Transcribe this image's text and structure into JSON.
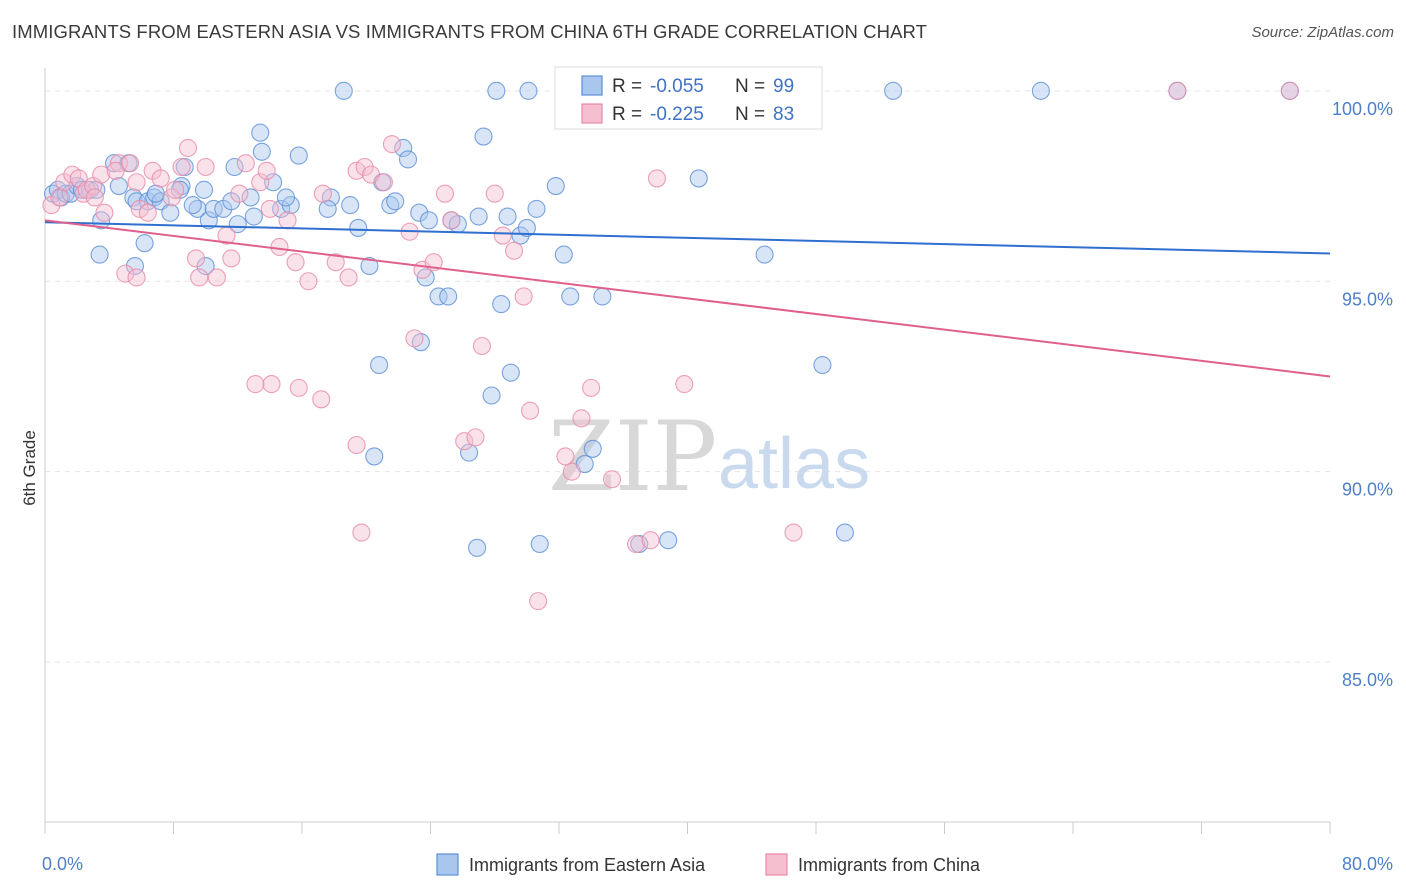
{
  "header": {
    "title": "IMMIGRANTS FROM EASTERN ASIA VS IMMIGRANTS FROM CHINA 6TH GRADE CORRELATION CHART",
    "source": "Source: ZipAtlas.com"
  },
  "watermark": {
    "zip": "ZIP",
    "atlas": "atlas"
  },
  "colors": {
    "blue": "#5b8fd6",
    "blue_fill": "#a9c6ee",
    "blue_line": "#2f6fcf",
    "pink": "#e88aa8",
    "pink_fill": "#f5bfd0",
    "pink_line": "#e0608c",
    "tick_text": "#4f7fc8",
    "grid": "#e4e4e4"
  },
  "chart_data": {
    "type": "scatter",
    "title": "IMMIGRANTS FROM EASTERN ASIA VS IMMIGRANTS FROM CHINA 6TH GRADE CORRELATION CHART",
    "ylabel": "6th Grade",
    "xlim": [
      0,
      80
    ],
    "ylim": [
      80.8,
      100.6
    ],
    "x_tick_labels": [
      {
        "value": 0,
        "label": "0.0%"
      },
      {
        "value": 80,
        "label": "80.0%"
      }
    ],
    "y_tick_labels": [
      {
        "value": 100,
        "label": "100.0%"
      },
      {
        "value": 95,
        "label": "95.0%"
      },
      {
        "value": 90,
        "label": "90.0%"
      },
      {
        "value": 85,
        "label": "85.0%"
      }
    ],
    "grid": true,
    "legend_position": "top-center",
    "legend": [
      {
        "r_label": "R =",
        "r_value": "-0.055",
        "n_label": "N =",
        "n_value": "99"
      },
      {
        "r_label": "R =",
        "r_value": "-0.225",
        "n_label": "N =",
        "n_value": "83"
      }
    ],
    "series": [
      {
        "name": "Immigrants from Eastern Asia",
        "color": "#5b8fd6",
        "trend": {
          "x": [
            0,
            80
          ],
          "y": [
            96.55,
            95.73
          ]
        },
        "points": [
          [
            0.5,
            97.3
          ],
          [
            0.8,
            97.4
          ],
          [
            1.0,
            97.2
          ],
          [
            1.3,
            97.3
          ],
          [
            1.6,
            97.3
          ],
          [
            2.0,
            97.5
          ],
          [
            2.3,
            97.4
          ],
          [
            2.8,
            97.4
          ],
          [
            3.2,
            97.4
          ],
          [
            3.5,
            96.6
          ],
          [
            3.4,
            95.7
          ],
          [
            4.3,
            98.1
          ],
          [
            4.6,
            97.5
          ],
          [
            5.2,
            98.1
          ],
          [
            5.5,
            97.2
          ],
          [
            5.7,
            97.1
          ],
          [
            5.6,
            95.4
          ],
          [
            6.2,
            96.0
          ],
          [
            6.4,
            97.1
          ],
          [
            6.8,
            97.2
          ],
          [
            7.2,
            97.1
          ],
          [
            7.8,
            96.8
          ],
          [
            8.5,
            97.5
          ],
          [
            8.7,
            98.0
          ],
          [
            8.4,
            97.4
          ],
          [
            9.9,
            97.4
          ],
          [
            9.5,
            96.9
          ],
          [
            10.2,
            96.6
          ],
          [
            10.5,
            96.9
          ],
          [
            10.0,
            95.4
          ],
          [
            11.1,
            96.9
          ],
          [
            11.8,
            98.0
          ],
          [
            11.6,
            97.1
          ],
          [
            12.8,
            97.2
          ],
          [
            13.4,
            98.9
          ],
          [
            13.0,
            96.7
          ],
          [
            13.5,
            98.4
          ],
          [
            14.2,
            97.6
          ],
          [
            14.7,
            96.9
          ],
          [
            15.3,
            97.0
          ],
          [
            15.8,
            98.3
          ],
          [
            17.8,
            97.2
          ],
          [
            18.6,
            100.0
          ],
          [
            19.0,
            97.0
          ],
          [
            19.5,
            96.4
          ],
          [
            20.2,
            95.4
          ],
          [
            20.8,
            92.8
          ],
          [
            20.5,
            90.4
          ],
          [
            21.5,
            97.0
          ],
          [
            21.8,
            97.1
          ],
          [
            22.3,
            98.5
          ],
          [
            22.6,
            98.2
          ],
          [
            23.3,
            96.8
          ],
          [
            23.7,
            95.1
          ],
          [
            23.9,
            96.6
          ],
          [
            23.4,
            93.4
          ],
          [
            24.5,
            94.6
          ],
          [
            25.1,
            94.6
          ],
          [
            25.3,
            96.6
          ],
          [
            26.4,
            90.5
          ],
          [
            26.9,
            88.0
          ],
          [
            27.3,
            98.8
          ],
          [
            27.8,
            92.0
          ],
          [
            28.1,
            100.0
          ],
          [
            28.4,
            94.4
          ],
          [
            28.8,
            96.7
          ],
          [
            29.0,
            92.6
          ],
          [
            29.6,
            96.2
          ],
          [
            30.0,
            96.4
          ],
          [
            30.6,
            96.9
          ],
          [
            30.8,
            88.1
          ],
          [
            31.8,
            97.5
          ],
          [
            32.3,
            95.7
          ],
          [
            32.7,
            94.6
          ],
          [
            33.6,
            90.2
          ],
          [
            34.1,
            90.6
          ],
          [
            34.7,
            94.6
          ],
          [
            37.0,
            88.1
          ],
          [
            38.8,
            88.2
          ],
          [
            40.7,
            97.7
          ],
          [
            42.0,
            100.0
          ],
          [
            42.4,
            100.0
          ],
          [
            44.0,
            100.0
          ],
          [
            44.8,
            95.7
          ],
          [
            48.4,
            92.8
          ],
          [
            49.8,
            88.4
          ],
          [
            52.8,
            100.0
          ],
          [
            62.0,
            100.0
          ],
          [
            70.5,
            100.0
          ],
          [
            77.5,
            100.0
          ],
          [
            30.1,
            100.0
          ],
          [
            27.0,
            96.7
          ],
          [
            25.7,
            96.5
          ],
          [
            21.0,
            97.6
          ],
          [
            17.6,
            96.9
          ],
          [
            15.0,
            97.2
          ],
          [
            12.0,
            96.5
          ],
          [
            9.2,
            97.0
          ],
          [
            6.9,
            97.3
          ]
        ]
      },
      {
        "name": "Immigrants from China",
        "color": "#e88aa8",
        "trend": {
          "x": [
            0,
            80
          ],
          "y": [
            96.6,
            92.5
          ]
        },
        "points": [
          [
            0.4,
            97.0
          ],
          [
            0.9,
            97.2
          ],
          [
            1.2,
            97.6
          ],
          [
            1.7,
            97.8
          ],
          [
            2.1,
            97.7
          ],
          [
            2.4,
            97.3
          ],
          [
            2.6,
            97.4
          ],
          [
            3.0,
            97.5
          ],
          [
            3.5,
            97.8
          ],
          [
            3.1,
            97.2
          ],
          [
            3.7,
            96.8
          ],
          [
            4.6,
            98.1
          ],
          [
            4.4,
            97.9
          ],
          [
            5.3,
            98.1
          ],
          [
            5.7,
            97.6
          ],
          [
            5.9,
            96.9
          ],
          [
            5.0,
            95.2
          ],
          [
            5.7,
            95.1
          ],
          [
            6.4,
            96.8
          ],
          [
            6.7,
            97.9
          ],
          [
            7.2,
            97.7
          ],
          [
            7.9,
            97.2
          ],
          [
            8.5,
            98.0
          ],
          [
            8.9,
            98.5
          ],
          [
            8.1,
            97.4
          ],
          [
            9.4,
            95.6
          ],
          [
            9.6,
            95.1
          ],
          [
            10.0,
            98.0
          ],
          [
            10.7,
            95.1
          ],
          [
            11.3,
            96.2
          ],
          [
            11.6,
            95.6
          ],
          [
            12.1,
            97.3
          ],
          [
            12.5,
            98.1
          ],
          [
            13.4,
            97.6
          ],
          [
            13.8,
            97.9
          ],
          [
            14.0,
            96.9
          ],
          [
            14.6,
            95.9
          ],
          [
            15.1,
            96.6
          ],
          [
            15.6,
            95.5
          ],
          [
            16.4,
            95.0
          ],
          [
            17.3,
            97.3
          ],
          [
            18.1,
            95.5
          ],
          [
            18.9,
            95.1
          ],
          [
            19.4,
            97.9
          ],
          [
            19.9,
            98.0
          ],
          [
            20.3,
            97.8
          ],
          [
            21.1,
            97.6
          ],
          [
            21.6,
            98.6
          ],
          [
            22.7,
            96.3
          ],
          [
            23.0,
            93.5
          ],
          [
            23.5,
            95.3
          ],
          [
            24.2,
            95.5
          ],
          [
            24.9,
            97.3
          ],
          [
            25.3,
            96.6
          ],
          [
            26.1,
            90.8
          ],
          [
            26.8,
            90.9
          ],
          [
            27.2,
            93.3
          ],
          [
            28.0,
            97.3
          ],
          [
            28.5,
            96.2
          ],
          [
            29.2,
            95.8
          ],
          [
            29.8,
            94.6
          ],
          [
            30.2,
            91.6
          ],
          [
            30.7,
            86.6
          ],
          [
            32.4,
            90.4
          ],
          [
            32.8,
            90.0
          ],
          [
            33.4,
            91.4
          ],
          [
            34.0,
            92.2
          ],
          [
            35.3,
            89.8
          ],
          [
            36.8,
            88.1
          ],
          [
            37.7,
            88.2
          ],
          [
            38.1,
            97.7
          ],
          [
            39.0,
            100.0
          ],
          [
            39.8,
            92.3
          ],
          [
            45.2,
            100.0
          ],
          [
            46.6,
            88.4
          ],
          [
            70.5,
            100.0
          ],
          [
            77.5,
            100.0
          ],
          [
            14.1,
            92.3
          ],
          [
            15.8,
            92.2
          ],
          [
            17.2,
            91.9
          ],
          [
            19.4,
            90.7
          ],
          [
            19.7,
            88.4
          ],
          [
            13.1,
            92.3
          ]
        ]
      }
    ]
  },
  "bottom_legend": [
    {
      "label": "Immigrants from Eastern Asia"
    },
    {
      "label": "Immigrants from China"
    }
  ]
}
